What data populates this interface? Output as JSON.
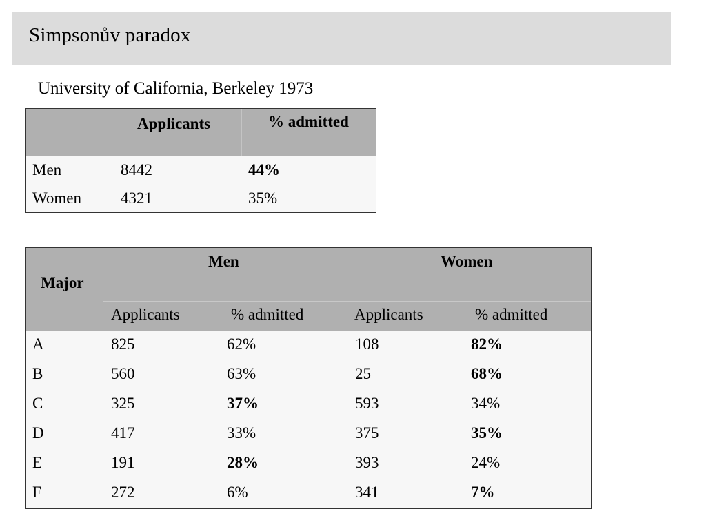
{
  "slide": {
    "title": "Simpsonův paradox",
    "subtitle": "University of California, Berkeley 1973"
  },
  "summary_table": {
    "headers": [
      "",
      "Applicants",
      "% admitted"
    ],
    "rows": [
      {
        "label": "Men",
        "applicants": "8442",
        "admitted": "44%",
        "admitted_bold": true
      },
      {
        "label": "Women",
        "applicants": "4321",
        "admitted": "35%",
        "admitted_bold": false
      }
    ]
  },
  "major_table": {
    "major_header": "Major",
    "groups": [
      "Men",
      "Women"
    ],
    "subheaders": [
      "Applicants",
      "% admitted",
      "Applicants",
      "% admitted"
    ],
    "rows": [
      {
        "major": "A",
        "men_applicants": "825",
        "men_admitted": "62%",
        "women_applicants": "108",
        "women_admitted": "82%",
        "bold": "women"
      },
      {
        "major": "B",
        "men_applicants": "560",
        "men_admitted": "63%",
        "women_applicants": "25",
        "women_admitted": "68%",
        "bold": "women"
      },
      {
        "major": "C",
        "men_applicants": "325",
        "men_admitted": "37%",
        "women_applicants": "593",
        "women_admitted": "34%",
        "bold": "men"
      },
      {
        "major": "D",
        "men_applicants": "417",
        "men_admitted": "33%",
        "women_applicants": "375",
        "women_admitted": "35%",
        "bold": "women"
      },
      {
        "major": "E",
        "men_applicants": "191",
        "men_admitted": "28%",
        "women_applicants": "393",
        "women_admitted": "24%",
        "bold": "men"
      },
      {
        "major": "F",
        "men_applicants": "272",
        "men_admitted": "6%",
        "women_applicants": "341",
        "women_admitted": "7%",
        "bold": "women"
      }
    ]
  }
}
